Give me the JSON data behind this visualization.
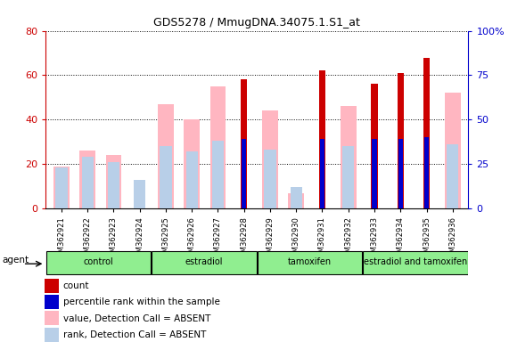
{
  "title": "GDS5278 / MmugDNA.34075.1.S1_at",
  "samples": [
    "GSM362921",
    "GSM362922",
    "GSM362923",
    "GSM362924",
    "GSM362925",
    "GSM362926",
    "GSM362927",
    "GSM362928",
    "GSM362929",
    "GSM362930",
    "GSM362931",
    "GSM362932",
    "GSM362933",
    "GSM362934",
    "GSM362935",
    "GSM362936"
  ],
  "groups_def": [
    {
      "name": "control",
      "start": 0,
      "end": 4
    },
    {
      "name": "estradiol",
      "start": 4,
      "end": 8
    },
    {
      "name": "tamoxifen",
      "start": 8,
      "end": 12
    },
    {
      "name": "estradiol and tamoxifen",
      "start": 12,
      "end": 16
    }
  ],
  "count_present": [
    null,
    null,
    null,
    null,
    null,
    null,
    null,
    58,
    null,
    null,
    62,
    null,
    56,
    61,
    68,
    null
  ],
  "rank_present": [
    null,
    null,
    null,
    null,
    null,
    null,
    null,
    39,
    null,
    null,
    39,
    null,
    39,
    39,
    40,
    null
  ],
  "value_absent": [
    19,
    26,
    24,
    null,
    47,
    40,
    55,
    null,
    44,
    7,
    null,
    46,
    null,
    null,
    null,
    52
  ],
  "rank_absent": [
    23,
    29,
    26,
    16,
    35,
    32,
    38,
    null,
    33,
    12,
    null,
    35,
    null,
    null,
    null,
    36
  ],
  "ylim_left": [
    0,
    80
  ],
  "ylim_right": [
    0,
    100
  ],
  "yticks_left": [
    0,
    20,
    40,
    60,
    80
  ],
  "yticks_right": [
    0,
    25,
    50,
    75,
    100
  ],
  "left_tick_color": "#cc0000",
  "right_tick_color": "#0000cc",
  "count_color": "#cc0000",
  "rank_color": "#0000cc",
  "value_absent_color": "#ffb6c1",
  "rank_absent_color": "#b8cfe8",
  "group_color": "#90ee90",
  "bg_color": "#ffffff",
  "legend_items": [
    {
      "label": "count",
      "color": "#cc0000"
    },
    {
      "label": "percentile rank within the sample",
      "color": "#0000cc"
    },
    {
      "label": "value, Detection Call = ABSENT",
      "color": "#ffb6c1"
    },
    {
      "label": "rank, Detection Call = ABSENT",
      "color": "#b8cfe8"
    }
  ]
}
